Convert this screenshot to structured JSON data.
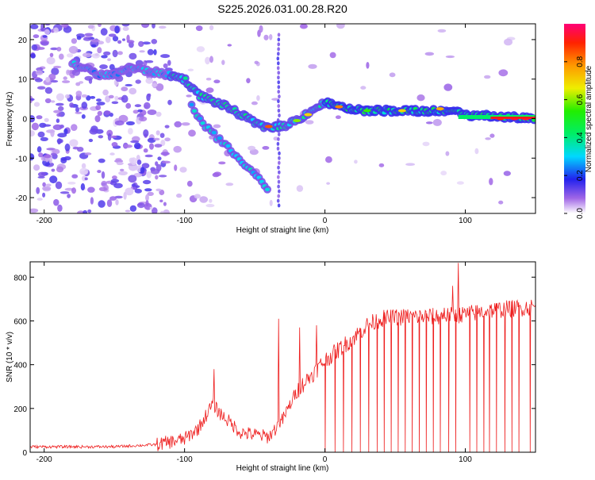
{
  "title": "S225.2026.031.00.28.R20",
  "chart_data": [
    {
      "type": "heatmap",
      "xlabel": "Height of straight line (km)",
      "ylabel": "Frequency (Hz)",
      "xlim": [
        -210,
        150
      ],
      "ylim": [
        -24,
        24
      ],
      "xticks": [
        -200,
        -100,
        0,
        100
      ],
      "yticks": [
        20,
        10,
        0,
        -10,
        -20
      ],
      "colorbar": {
        "label": "Normalized spectral amplitude",
        "range": [
          0,
          1
        ],
        "ticks": [
          "0.0",
          "0.2",
          "0.4",
          "0.6",
          "0.8"
        ]
      },
      "ridges": [
        {
          "name": "main",
          "points": [
            [
              -180,
              14
            ],
            [
              -160,
              11
            ],
            [
              -150,
              11
            ],
            [
              -140,
              13
            ],
            [
              -125,
              12
            ],
            [
              -110,
              11
            ],
            [
              -100,
              10
            ],
            [
              -90,
              6
            ],
            [
              -70,
              3
            ],
            [
              -55,
              0
            ],
            [
              -45,
              -2
            ],
            [
              -30,
              -2
            ],
            [
              -18,
              0
            ],
            [
              -10,
              2
            ],
            [
              0,
              4
            ],
            [
              10,
              3
            ],
            [
              30,
              2
            ],
            [
              60,
              2
            ],
            [
              90,
              2
            ],
            [
              100,
              1
            ],
            [
              150,
              0
            ]
          ]
        },
        {
          "name": "descending",
          "points": [
            [
              -95,
              3
            ],
            [
              -85,
              -2
            ],
            [
              -70,
              -7
            ],
            [
              -55,
              -12
            ],
            [
              -40,
              -18
            ]
          ]
        }
      ]
    },
    {
      "type": "line",
      "xlabel": "Height of straight line (km)",
      "ylabel": "SNR (10 * v/v)",
      "xlim": [
        -210,
        150
      ],
      "ylim": [
        0,
        870
      ],
      "xticks": [
        -200,
        -100,
        0,
        100
      ],
      "yticks": [
        0,
        200,
        400,
        600,
        800
      ],
      "series": [
        {
          "name": "SNR",
          "color": "#ee1c1c",
          "envelope": [
            [
              -210,
              25
            ],
            [
              -150,
              25
            ],
            [
              -120,
              35
            ],
            [
              -100,
              60
            ],
            [
              -90,
              110
            ],
            [
              -80,
              220
            ],
            [
              -75,
              180
            ],
            [
              -60,
              90
            ],
            [
              -40,
              70
            ],
            [
              -30,
              150
            ],
            [
              -20,
              280
            ],
            [
              -10,
              350
            ],
            [
              0,
              420
            ],
            [
              20,
              520
            ],
            [
              30,
              580
            ],
            [
              40,
              610
            ],
            [
              60,
              620
            ],
            [
              80,
              620
            ],
            [
              100,
              630
            ],
            [
              120,
              650
            ],
            [
              150,
              665
            ]
          ],
          "spikes": [
            [
              -79,
              380
            ],
            [
              -33,
              610
            ],
            [
              -18,
              570
            ],
            [
              -6,
              580
            ],
            [
              85,
              660
            ],
            [
              91,
              760
            ],
            [
              95,
              865
            ]
          ],
          "dropouts": [
            0,
            7,
            13,
            19,
            25,
            31,
            37,
            42,
            47,
            52,
            57,
            62,
            67,
            72,
            77,
            82,
            88,
            93,
            103,
            108,
            113,
            117,
            122,
            128,
            133,
            138,
            146
          ]
        }
      ]
    }
  ]
}
